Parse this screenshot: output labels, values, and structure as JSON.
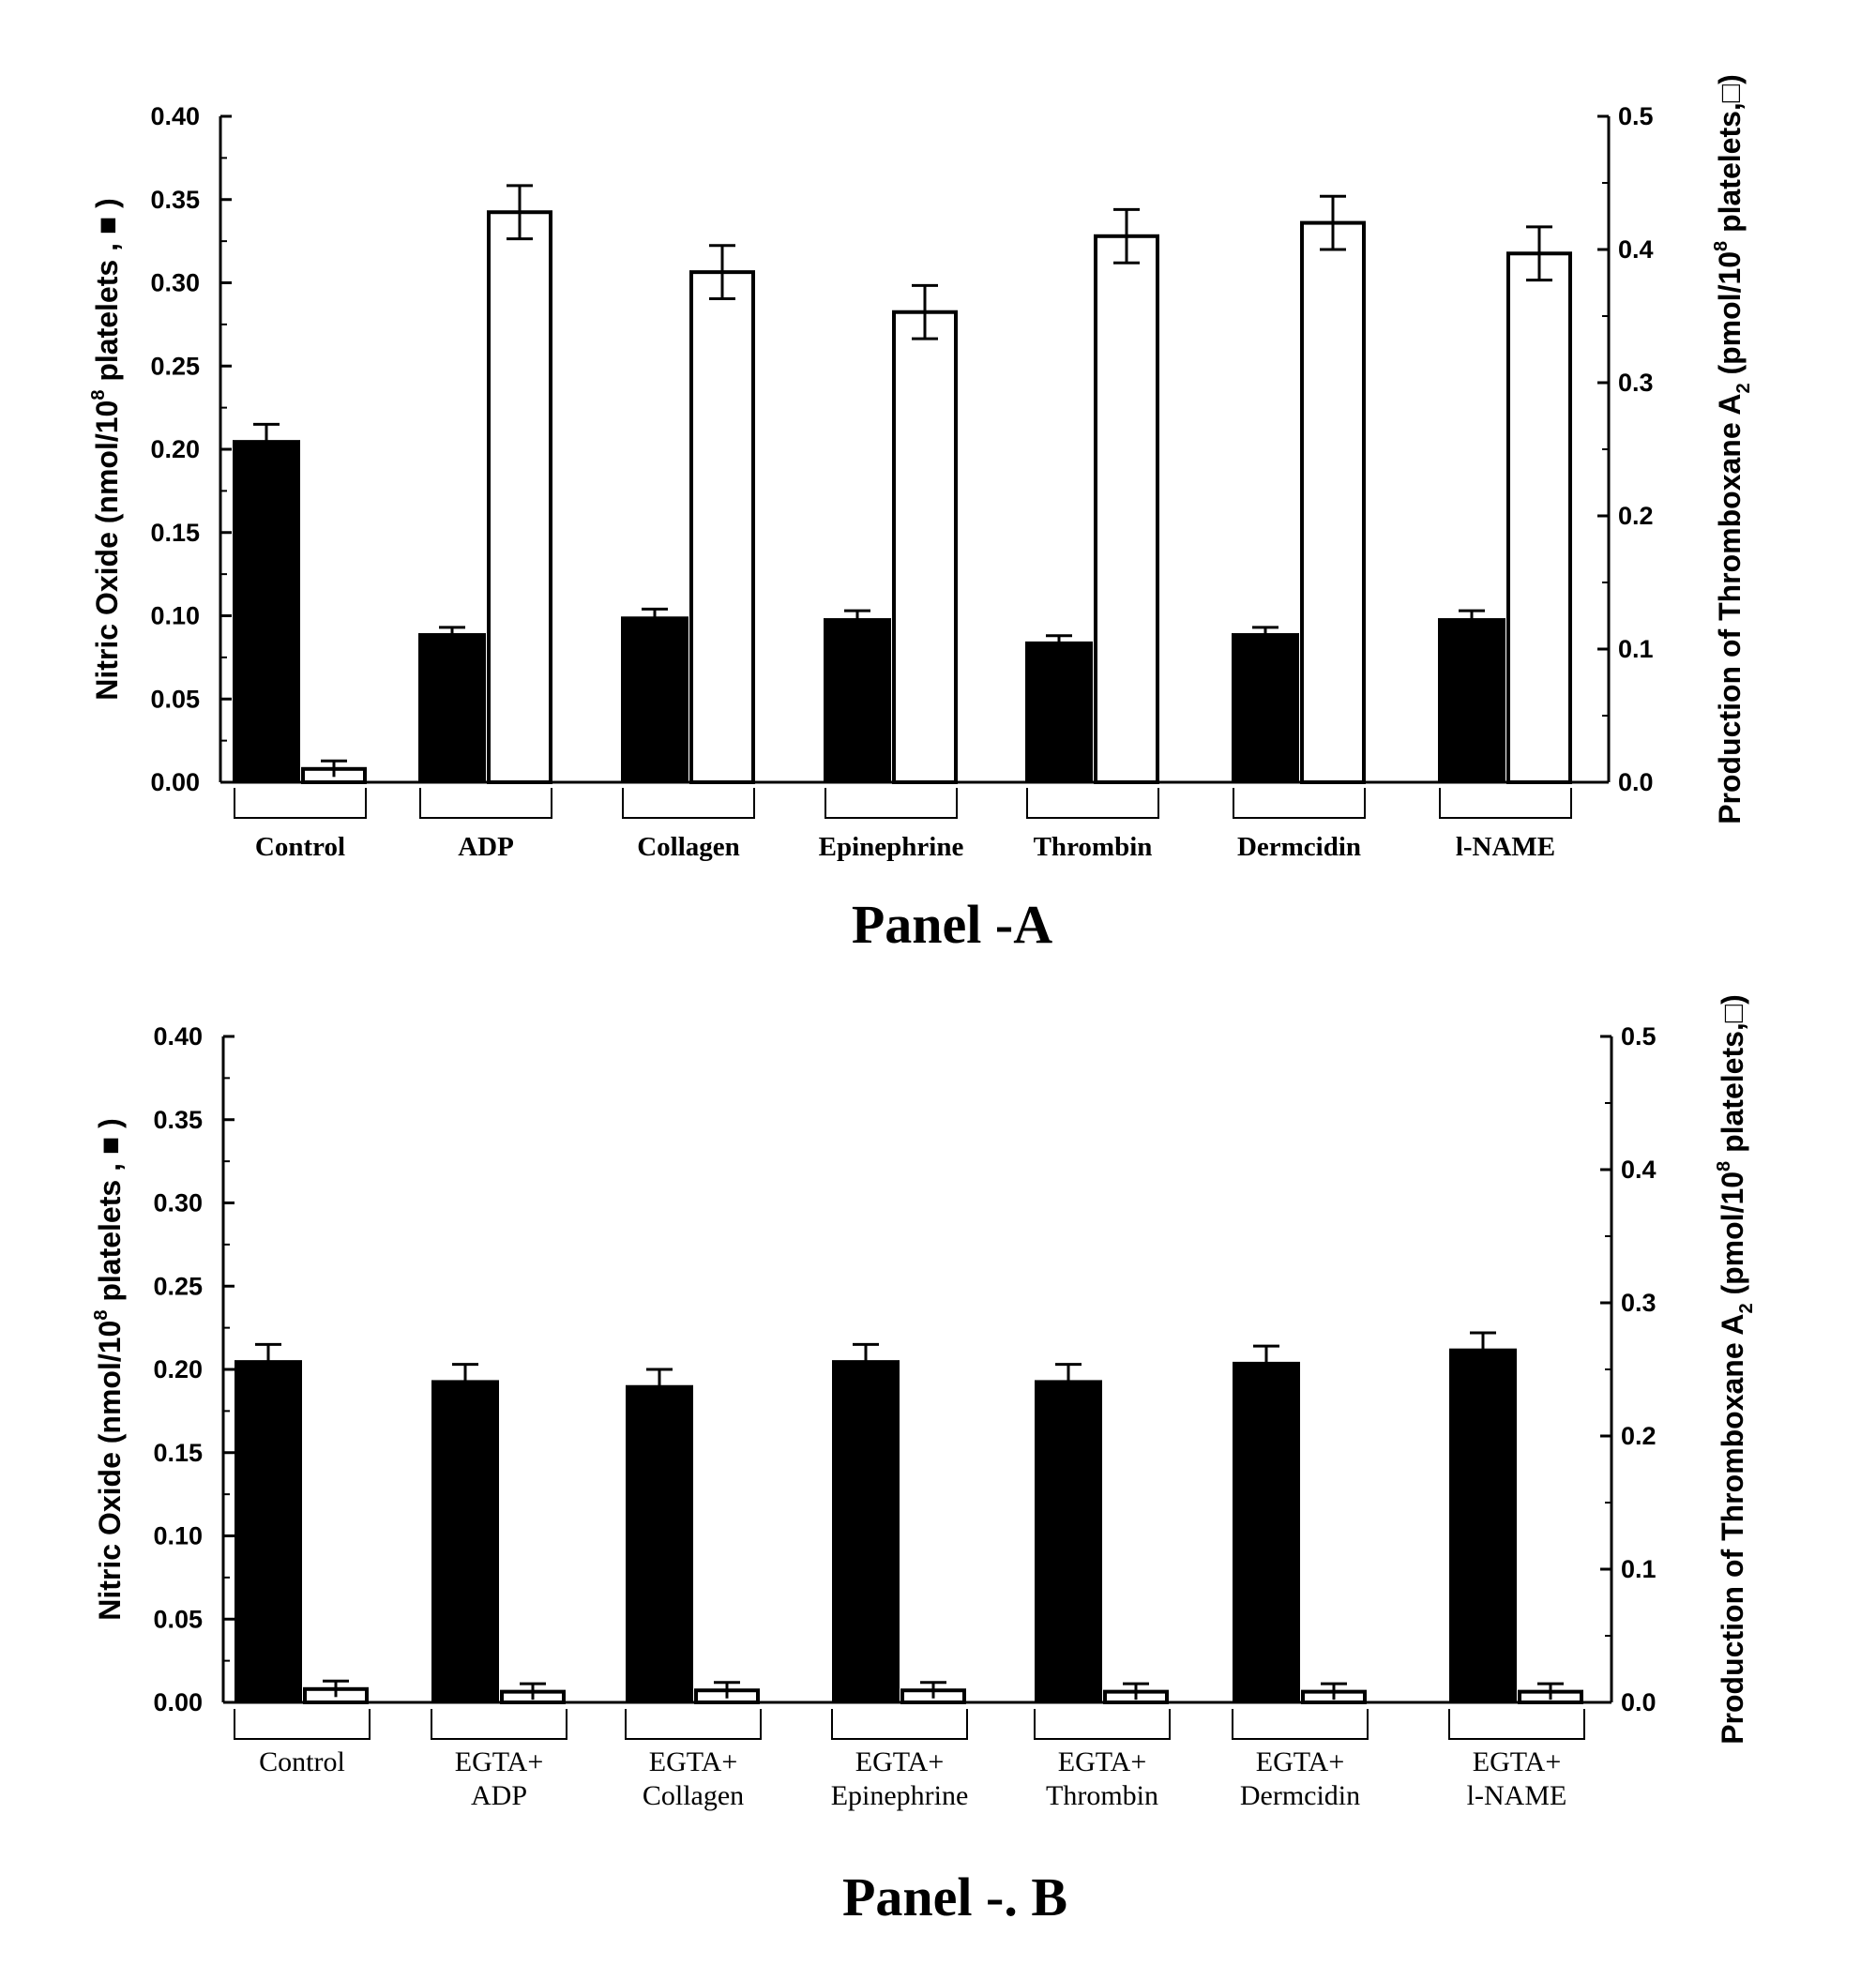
{
  "chart_data": [
    {
      "type": "bar",
      "panel_label": "Panel -A",
      "categories": [
        "Control",
        "ADP",
        "Collagen",
        "Epinephrine",
        "Thrombin",
        "Dermcidin",
        "l-NAME"
      ],
      "category_lines": [
        [
          "Control"
        ],
        [
          "ADP"
        ],
        [
          "Collagen"
        ],
        [
          "Epinephrine"
        ],
        [
          "Thrombin"
        ],
        [
          "Dermcidin"
        ],
        [
          "l-NAME"
        ]
      ],
      "series": [
        {
          "legend_symbol": "filled-square",
          "axis": "left",
          "values": [
            0.205,
            0.089,
            0.099,
            0.098,
            0.084,
            0.089,
            0.098
          ],
          "errors": [
            0.01,
            0.004,
            0.005,
            0.005,
            0.004,
            0.004,
            0.005
          ]
        },
        {
          "legend_symbol": "open-square",
          "axis": "right",
          "values": [
            0.01,
            0.428,
            0.383,
            0.353,
            0.41,
            0.42,
            0.397
          ],
          "errors": [
            0.006,
            0.02,
            0.02,
            0.02,
            0.02,
            0.02,
            0.02
          ]
        }
      ],
      "ylabel_left": {
        "text": "Nitric Oxide (nmol/10",
        "sup": "8",
        "rest": " platelets , ■ )"
      },
      "ylabel_right": {
        "text": "Production of Thromboxane A",
        "sub": "2",
        "mid": " (pmol/10",
        "sup": "8",
        "rest": " platelets,□)"
      },
      "ylim_left": [
        0,
        0.4
      ],
      "yticks_left": [
        "0.00",
        "0.05",
        "0.10",
        "0.15",
        "0.20",
        "0.25",
        "0.30",
        "0.35",
        "0.40"
      ],
      "ylim_right": [
        0,
        0.5
      ],
      "yticks_right": [
        "0.0",
        "0.1",
        "0.2",
        "0.3",
        "0.4",
        "0.5"
      ],
      "grid": false
    },
    {
      "type": "bar",
      "panel_label": "Panel -. B",
      "categories": [
        "Control",
        "EGTA+ ADP",
        "EGTA+ Collagen",
        "EGTA+ Epinephrine",
        "EGTA+ Thrombin",
        "EGTA+ Dermcidin",
        "EGTA+ l-NAME"
      ],
      "category_lines": [
        [
          "Control"
        ],
        [
          "EGTA+",
          "ADP"
        ],
        [
          "EGTA+",
          "Collagen"
        ],
        [
          "EGTA+",
          "Epinephrine"
        ],
        [
          "EGTA+",
          "Thrombin"
        ],
        [
          "EGTA+",
          "Dermcidin"
        ],
        [
          "EGTA+",
          "l-NAME"
        ]
      ],
      "series": [
        {
          "legend_symbol": "filled-square",
          "axis": "left",
          "values": [
            0.205,
            0.193,
            0.19,
            0.205,
            0.193,
            0.204,
            0.212
          ],
          "errors": [
            0.01,
            0.01,
            0.01,
            0.01,
            0.01,
            0.01,
            0.01
          ]
        },
        {
          "legend_symbol": "open-square",
          "axis": "right",
          "values": [
            0.01,
            0.008,
            0.009,
            0.009,
            0.008,
            0.008,
            0.008
          ],
          "errors": [
            0.006,
            0.006,
            0.006,
            0.006,
            0.006,
            0.006,
            0.006
          ]
        }
      ],
      "ylabel_left": {
        "text": "Nitric Oxide (nmol/10",
        "sup": "8",
        "rest": " platelets , ■ )"
      },
      "ylabel_right": {
        "text": "Production of Thromboxane A",
        "sub": "2",
        "mid": " (pmol/10",
        "sup": "8",
        "rest": " platelets,□)"
      },
      "ylim_left": [
        0,
        0.4
      ],
      "yticks_left": [
        "0.00",
        "0.05",
        "0.10",
        "0.15",
        "0.20",
        "0.25",
        "0.30",
        "0.35",
        "0.40"
      ],
      "ylim_right": [
        0,
        0.5
      ],
      "yticks_right": [
        "0.0",
        "0.1",
        "0.2",
        "0.3",
        "0.4",
        "0.5"
      ],
      "grid": false
    }
  ]
}
